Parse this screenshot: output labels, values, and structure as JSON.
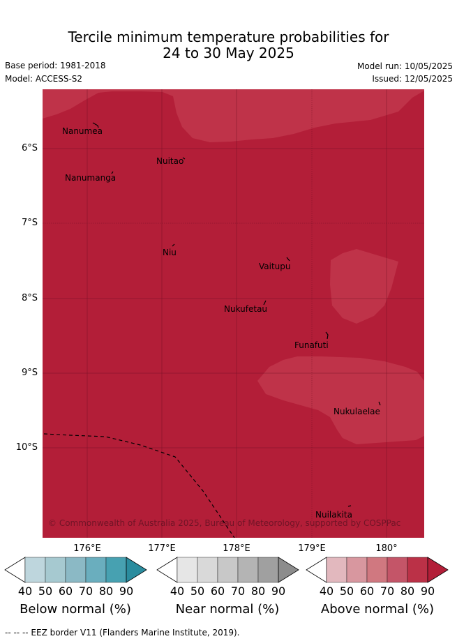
{
  "title": {
    "line1": "Tercile minimum temperature probabilities for",
    "line2": "24 to 30 May 2025"
  },
  "meta": {
    "base_period": "Base period: 1981-2018",
    "model": "Model: ACCESS-S2",
    "model_run": "Model run: 10/05/2025",
    "issued": "Issued: 12/05/2025"
  },
  "map": {
    "background_color": "#b31e38",
    "light_region_color": "#bf3349",
    "latitude_labels": [
      "6°S",
      "7°S",
      "8°S",
      "9°S",
      "10°S"
    ],
    "longitude_labels": [
      "176°E",
      "177°E",
      "178°E",
      "179°E",
      "180°"
    ],
    "islands": [
      {
        "name": "Nanumea"
      },
      {
        "name": "Nuitao"
      },
      {
        "name": "Nanumanga"
      },
      {
        "name": "Niu"
      },
      {
        "name": "Vaitupu"
      },
      {
        "name": "Nukufetau"
      },
      {
        "name": "Funafuti"
      },
      {
        "name": "Nukulaelae"
      },
      {
        "name": "Nuilakita"
      }
    ],
    "copyright": "© Commonwealth of Australia 2025, Bureau of Meteorology, supported by COSPPac"
  },
  "colorbars": [
    {
      "title": "Below normal (%)",
      "ticks": [
        "40",
        "50",
        "60",
        "70",
        "80",
        "90"
      ],
      "colors": [
        "#ffffff",
        "#bed6dd",
        "#a6c9d0",
        "#8bb9c5",
        "#6aaebe",
        "#47a1b1",
        "#2a8c9e"
      ]
    },
    {
      "title": "Near normal (%)",
      "ticks": [
        "40",
        "50",
        "60",
        "70",
        "80",
        "90"
      ],
      "colors": [
        "#ffffff",
        "#e6e6e6",
        "#d9d9d9",
        "#c8c8c8",
        "#b4b4b4",
        "#a0a0a0",
        "#8c8c8c"
      ]
    },
    {
      "title": "Above normal (%)",
      "ticks": [
        "40",
        "50",
        "60",
        "70",
        "80",
        "90"
      ],
      "colors": [
        "#ffffff",
        "#e2b8be",
        "#d8979f",
        "#d07880",
        "#c45568",
        "#bb3147",
        "#b31e38"
      ]
    }
  ],
  "footnote": "--  --  -- EEZ border V11 (Flanders Marine Institute, 2019)."
}
